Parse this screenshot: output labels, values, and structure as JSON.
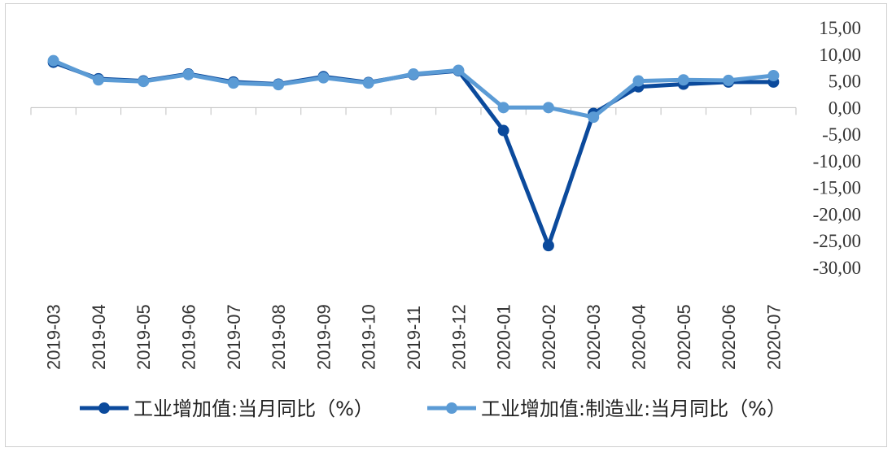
{
  "chart_data": {
    "type": "line",
    "title": "",
    "xlabel": "",
    "ylabel": "",
    "categories": [
      "2019-03",
      "2019-04",
      "2019-05",
      "2019-06",
      "2019-07",
      "2019-08",
      "2019-09",
      "2019-10",
      "2019-11",
      "2019-12",
      "2020-01",
      "2020-02",
      "2020-03",
      "2020-04",
      "2020-05",
      "2020-06",
      "2020-07"
    ],
    "y_ticks": [
      "15,00",
      "10,00",
      "5,00",
      "0,00",
      "-5,00",
      "-10,00",
      "-15,00",
      "-20,00",
      "-25,00",
      "-30,00"
    ],
    "ylim": [
      -30,
      15
    ],
    "y_axis_position": "right",
    "grid": false,
    "legend_position": "bottom",
    "series": [
      {
        "name": "工业增加值:当月同比（%）",
        "color": "#0b4a9c",
        "values": [
          8.5,
          5.4,
          5.0,
          6.3,
          4.8,
          4.4,
          5.8,
          4.7,
          6.2,
          6.9,
          -4.3,
          -25.9,
          -1.1,
          3.9,
          4.4,
          4.8,
          4.8
        ]
      },
      {
        "name": "工业增加值:制造业:当月同比（%）",
        "color": "#5b9bd5",
        "values": [
          8.8,
          5.2,
          4.9,
          6.2,
          4.6,
          4.3,
          5.6,
          4.6,
          6.3,
          7.0,
          0.0,
          0.0,
          -1.8,
          5.0,
          5.2,
          5.1,
          6.0
        ]
      }
    ]
  }
}
